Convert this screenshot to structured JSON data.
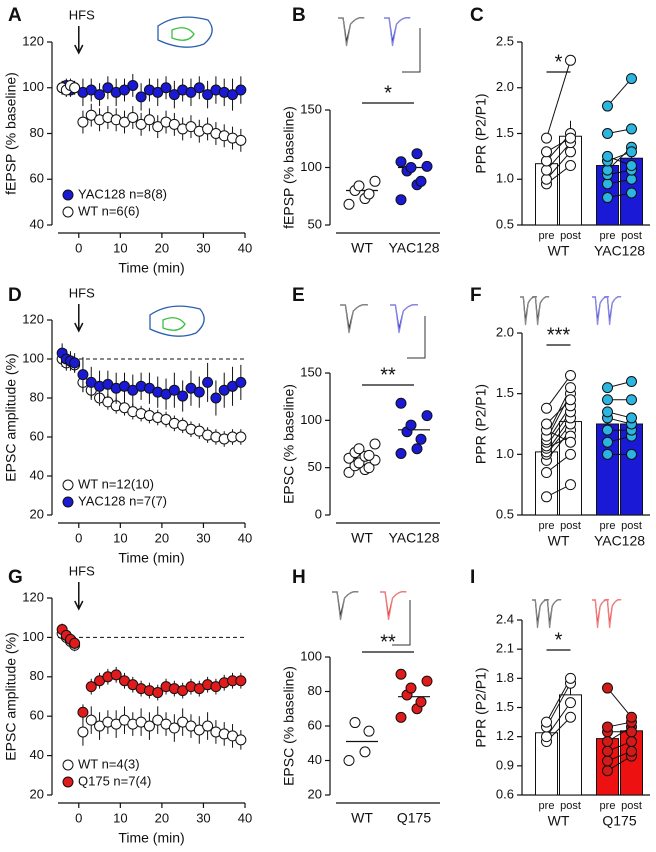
{
  "chart_data": [
    {
      "type": "scatter",
      "panel": "A",
      "annotation": "HFS",
      "x_label": "Time (min)",
      "y_label": "fEPSP (% baseline)",
      "x": [
        -4,
        -3,
        -2,
        -1,
        1,
        3,
        5,
        7,
        9,
        11,
        13,
        15,
        17,
        19,
        21,
        23,
        25,
        27,
        29,
        31,
        33,
        35,
        37,
        39
      ],
      "xlim": [
        -5,
        40
      ],
      "xticks": [
        0,
        10,
        20,
        30,
        40
      ],
      "ylim": [
        40,
        120
      ],
      "yticks": [
        40,
        60,
        80,
        100,
        120
      ],
      "legend": "lower left",
      "series": [
        {
          "name": "YAC128 n=8(8)",
          "color": "#1a1ad6",
          "values": [
            100,
            101,
            99,
            100,
            98,
            99,
            97,
            100,
            98,
            99,
            101,
            96,
            99,
            98,
            100,
            97,
            99,
            98,
            100,
            97,
            99,
            98,
            97,
            99
          ],
          "errors": [
            3,
            3,
            3,
            3,
            6,
            5,
            5,
            5,
            6,
            5,
            5,
            6,
            5,
            6,
            5,
            6,
            5,
            6,
            5,
            6,
            6,
            6,
            7,
            6
          ]
        },
        {
          "name": "WT n=6(6)",
          "color": "#ffffff",
          "values": [
            100,
            99,
            101,
            100,
            85,
            88,
            86,
            87,
            86,
            85,
            87,
            84,
            86,
            83,
            85,
            84,
            82,
            83,
            81,
            82,
            80,
            79,
            78,
            77
          ],
          "errors": [
            3,
            3,
            3,
            3,
            5,
            5,
            5,
            5,
            5,
            5,
            5,
            5,
            5,
            5,
            5,
            5,
            5,
            5,
            5,
            5,
            5,
            5,
            5,
            5
          ]
        }
      ]
    },
    {
      "type": "strip",
      "panel": "B",
      "y_label": "fEPSP (% baseline)",
      "significance": "*",
      "categories": [
        "WT",
        "YAC128"
      ],
      "ylim": [
        50,
        150
      ],
      "yticks": [
        50,
        100,
        150
      ],
      "series": [
        {
          "color": "#ffffff",
          "values": [
            68,
            73,
            77,
            80,
            84,
            88
          ],
          "mean": 80
        },
        {
          "color": "#1a1ad6",
          "values": [
            72,
            85,
            88,
            97,
            100,
            101,
            105,
            112
          ],
          "mean": 100
        }
      ]
    },
    {
      "type": "bar",
      "panel": "C",
      "y_label": "PPR (P2/P1)",
      "significance": "*",
      "conditions": [
        "pre",
        "post"
      ],
      "ylim": [
        0.5,
        2.5
      ],
      "yticks": [
        0.5,
        {
          "value": 1,
          "label": "1.0"
        },
        1.5,
        {
          "value": 2,
          "label": "2.0"
        },
        2.5
      ],
      "series": [
        {
          "name": "WT",
          "color": "#ffffff",
          "point_color": "#ffffff",
          "values": [
            1.17,
            1.47
          ],
          "errors": [
            0.1,
            0.17
          ],
          "pre": [
            0.95,
            1.0,
            1.1,
            1.2,
            1.3,
            1.45
          ],
          "post": [
            1.15,
            1.3,
            1.4,
            1.5,
            1.45,
            2.3
          ]
        },
        {
          "name": "YAC128",
          "color": "#1a1ad6",
          "point_color": "#2bb5e0",
          "values": [
            1.15,
            1.23
          ],
          "errors": [
            0.1,
            0.13
          ],
          "pre": [
            0.8,
            0.95,
            1.05,
            1.1,
            1.2,
            1.25,
            1.5,
            1.8
          ],
          "post": [
            0.85,
            1.0,
            1.1,
            1.35,
            1.3,
            1.15,
            1.55,
            2.1
          ]
        }
      ]
    },
    {
      "type": "scatter",
      "panel": "D",
      "annotation": "HFS",
      "x_label": "Time (min)",
      "y_label": "EPSC amplitude (%)",
      "reference_line": 100,
      "x": [
        -4,
        -3,
        -2,
        -1,
        1,
        3,
        5,
        7,
        9,
        11,
        13,
        15,
        17,
        19,
        21,
        23,
        25,
        27,
        29,
        31,
        33,
        35,
        37,
        39
      ],
      "xlim": [
        -5,
        40
      ],
      "xticks": [
        0,
        10,
        20,
        30,
        40
      ],
      "ylim": [
        20,
        120
      ],
      "yticks": [
        20,
        40,
        60,
        80,
        100,
        120
      ],
      "legend": "lower left",
      "series": [
        {
          "name": "WT n=12(10)",
          "color": "#ffffff",
          "values": [
            100,
            98,
            99,
            97,
            88,
            84,
            80,
            78,
            76,
            75,
            73,
            72,
            71,
            70,
            69,
            67,
            66,
            64,
            63,
            61,
            60,
            59,
            60,
            60
          ],
          "errors": [
            4,
            4,
            4,
            4,
            5,
            5,
            4,
            4,
            4,
            4,
            4,
            4,
            4,
            4,
            4,
            4,
            4,
            4,
            4,
            4,
            4,
            4,
            4,
            4
          ]
        },
        {
          "name": "YAC128 n=7(7)",
          "color": "#1a1ad6",
          "values": [
            103,
            100,
            99,
            98,
            92,
            88,
            86,
            87,
            85,
            86,
            84,
            86,
            85,
            83,
            82,
            84,
            81,
            85,
            83,
            88,
            80,
            84,
            86,
            88
          ],
          "errors": [
            5,
            5,
            5,
            5,
            9,
            8,
            8,
            7,
            8,
            7,
            8,
            7,
            8,
            8,
            8,
            9,
            8,
            9,
            8,
            10,
            9,
            9,
            10,
            9
          ]
        }
      ]
    },
    {
      "type": "strip",
      "panel": "E",
      "y_label": "EPSC (% baseline)",
      "significance": "**",
      "categories": [
        "WT",
        "YAC128"
      ],
      "ylim": [
        0,
        150
      ],
      "yticks": [
        0,
        50,
        100,
        150
      ],
      "series": [
        {
          "color": "#ffffff",
          "values": [
            45,
            48,
            50,
            52,
            55,
            58,
            60,
            62,
            63,
            66,
            70,
            75
          ],
          "mean": 60
        },
        {
          "color": "#1a1ad6",
          "values": [
            65,
            70,
            80,
            88,
            95,
            105,
            118
          ],
          "mean": 90
        }
      ]
    },
    {
      "type": "bar",
      "panel": "F",
      "y_label": "PPR (P2/P1)",
      "significance": "***",
      "conditions": [
        "pre",
        "post"
      ],
      "ylim": [
        0.5,
        2.0
      ],
      "yticks": [
        0.5,
        {
          "value": 1,
          "label": "1.0"
        },
        1.5,
        {
          "value": 2,
          "label": "2.0"
        }
      ],
      "series": [
        {
          "name": "WT",
          "color": "#ffffff",
          "point_color": "#ffffff",
          "values": [
            1.02,
            1.27
          ],
          "errors": [
            0.05,
            0.07
          ],
          "pre": [
            0.65,
            0.85,
            0.95,
            1.0,
            1.02,
            1.05,
            1.07,
            1.1,
            1.12,
            1.15,
            1.2,
            1.25,
            1.38
          ],
          "post": [
            0.75,
            1.0,
            1.2,
            1.25,
            1.3,
            1.15,
            1.35,
            1.4,
            1.5,
            1.55,
            1.1,
            1.45,
            1.65
          ]
        },
        {
          "name": "YAC128",
          "color": "#1a1ad6",
          "point_color": "#2bb5e0",
          "values": [
            1.25,
            1.25
          ],
          "errors": [
            0.08,
            0.07
          ],
          "pre": [
            1.0,
            1.1,
            1.2,
            1.3,
            1.35,
            1.45,
            1.55
          ],
          "post": [
            1.0,
            1.15,
            1.2,
            1.25,
            1.3,
            1.45,
            1.6
          ]
        }
      ]
    },
    {
      "type": "scatter",
      "panel": "G",
      "annotation": "HFS",
      "x_label": "Time (min)",
      "y_label": "EPSC amplitude (%)",
      "reference_line": 100,
      "x": [
        -4,
        -3,
        -2,
        -1,
        1,
        3,
        5,
        7,
        9,
        11,
        13,
        15,
        17,
        19,
        21,
        23,
        25,
        27,
        29,
        31,
        33,
        35,
        37,
        39
      ],
      "xlim": [
        -5,
        40
      ],
      "xticks": [
        0,
        10,
        20,
        30,
        40
      ],
      "ylim": [
        20,
        120
      ],
      "yticks": [
        20,
        40,
        60,
        80,
        100,
        120
      ],
      "legend": "lower left",
      "series": [
        {
          "name": "WT n=4(3)",
          "color": "#ffffff",
          "values": [
            102,
            100,
            98,
            96,
            52,
            58,
            55,
            57,
            56,
            58,
            56,
            57,
            55,
            58,
            56,
            54,
            57,
            55,
            53,
            55,
            52,
            51,
            50,
            48
          ],
          "errors": [
            3,
            3,
            3,
            3,
            7,
            7,
            7,
            6,
            7,
            7,
            6,
            7,
            7,
            7,
            6,
            7,
            7,
            6,
            7,
            7,
            6,
            6,
            6,
            5
          ]
        },
        {
          "name": "Q175 n=7(4)",
          "color": "#e11b1b",
          "values": [
            104,
            101,
            99,
            97,
            62,
            75,
            78,
            80,
            81,
            78,
            76,
            74,
            73,
            72,
            75,
            74,
            73,
            75,
            74,
            76,
            75,
            77,
            78,
            78
          ],
          "errors": [
            3,
            3,
            3,
            3,
            4,
            4,
            4,
            4,
            4,
            4,
            4,
            4,
            4,
            4,
            4,
            4,
            4,
            4,
            4,
            4,
            4,
            4,
            4,
            4
          ]
        }
      ]
    },
    {
      "type": "strip",
      "panel": "H",
      "y_label": "EPSC (% baseline)",
      "significance": "**",
      "categories": [
        "WT",
        "Q175"
      ],
      "ylim": [
        20,
        100
      ],
      "yticks": [
        20,
        40,
        60,
        80,
        100
      ],
      "series": [
        {
          "color": "#ffffff",
          "values": [
            40,
            45,
            57,
            62
          ],
          "mean": 51
        },
        {
          "color": "#e11b1b",
          "values": [
            65,
            70,
            74,
            78,
            82,
            86,
            90
          ],
          "mean": 77
        }
      ]
    },
    {
      "type": "bar",
      "panel": "I",
      "y_label": "PPR (P2/P1)",
      "significance": "*",
      "conditions": [
        "pre",
        "post"
      ],
      "ylim": [
        0.6,
        2.4
      ],
      "yticks": [
        0.6,
        0.9,
        1.2,
        1.5,
        1.8,
        2.1,
        2.4
      ],
      "series": [
        {
          "name": "WT",
          "color": "#ffffff",
          "point_color": "#ffffff",
          "values": [
            1.24,
            1.63
          ],
          "errors": [
            0.05,
            0.1
          ],
          "pre": [
            1.15,
            1.2,
            1.3,
            1.35
          ],
          "post": [
            1.4,
            1.55,
            1.75,
            1.8
          ]
        },
        {
          "name": "Q175",
          "color": "#ee1111",
          "point_color": "#d11a1a",
          "values": [
            1.18,
            1.26
          ],
          "errors": [
            0.1,
            0.06
          ],
          "pre": [
            0.85,
            0.95,
            1.05,
            1.15,
            1.25,
            1.3,
            1.7
          ],
          "post": [
            1.0,
            1.05,
            1.15,
            1.3,
            1.25,
            1.35,
            1.4
          ]
        }
      ]
    }
  ]
}
